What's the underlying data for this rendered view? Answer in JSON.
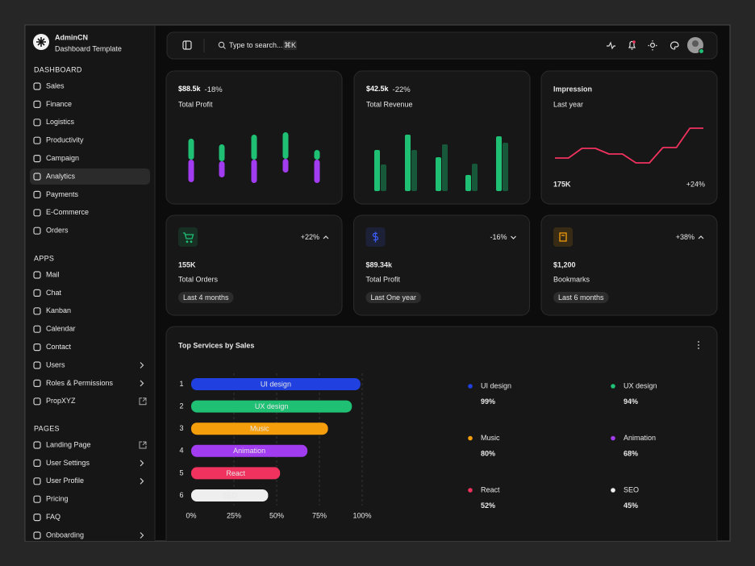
{
  "sidebar": {
    "brand": {
      "name": "AdminCN",
      "subtitle": "Dashboard Template"
    },
    "sections": [
      {
        "title": "DASHBOARD",
        "items": [
          {
            "label": "Sales"
          },
          {
            "label": "Finance"
          },
          {
            "label": "Logistics"
          },
          {
            "label": "Productivity"
          },
          {
            "label": "Campaign"
          },
          {
            "label": "Analytics",
            "active": true
          },
          {
            "label": "Payments"
          },
          {
            "label": "E-Commerce"
          },
          {
            "label": "Orders"
          }
        ]
      },
      {
        "title": "APPS",
        "items": [
          {
            "label": "Mail"
          },
          {
            "label": "Chat"
          },
          {
            "label": "Kanban"
          },
          {
            "label": "Calendar"
          },
          {
            "label": "Contact"
          },
          {
            "label": "Users",
            "trailing": "chevron"
          },
          {
            "label": "Roles & Permissions",
            "trailing": "chevron"
          },
          {
            "label": "PropXYZ",
            "trailing": "external"
          }
        ]
      },
      {
        "title": "PAGES",
        "items": [
          {
            "label": "Landing Page",
            "trailing": "external"
          },
          {
            "label": "User Settings",
            "trailing": "chevron"
          },
          {
            "label": "User Profile",
            "trailing": "chevron"
          },
          {
            "label": "Pricing"
          },
          {
            "label": "FAQ"
          },
          {
            "label": "Onboarding",
            "trailing": "chevron"
          }
        ]
      }
    ]
  },
  "topbar": {
    "search_placeholder": "Type to search...",
    "shortcut": "⌘K"
  },
  "profit_card": {
    "value": "$88.5k",
    "change": "-18%",
    "label": "Total Profit",
    "chart": {
      "type": "bar",
      "ylim": [
        0,
        70
      ],
      "offsets": [
        4,
        10,
        3,
        16,
        3
      ],
      "series": [
        {
          "color": "#a23cf0",
          "values": [
            28,
            20,
            29,
            17,
            29
          ]
        },
        {
          "color": "#1fbf74",
          "values": [
            26,
            21,
            31,
            33,
            12
          ]
        }
      ]
    }
  },
  "revenue_card": {
    "value": "$42.5k",
    "change": "-22%",
    "label": "Total Revenue",
    "chart": {
      "type": "bar",
      "ylim": [
        0,
        80
      ],
      "series": [
        {
          "color": "#1fbf74",
          "values": [
            51,
            70,
            42,
            20,
            68
          ]
        },
        {
          "color": "#17583a",
          "values": [
            33,
            51,
            58,
            34,
            60
          ]
        }
      ]
    }
  },
  "impression_card": {
    "title": "Impression",
    "subtitle": "Last year",
    "value": "175K",
    "change": "+24%",
    "chart": {
      "type": "line",
      "color": "#f0325f",
      "ylim": [
        0,
        80
      ],
      "values": [
        34,
        34,
        46,
        46,
        39,
        39,
        28,
        28,
        47,
        47,
        71,
        71
      ]
    }
  },
  "stat_cards": [
    {
      "change": "+22%",
      "trend": "up",
      "value": "155K",
      "label": "Total Orders",
      "period": "Last 4 months",
      "color": "#1fbf74"
    },
    {
      "change": "-16%",
      "trend": "down",
      "value": "$89.34k",
      "label": "Total Profit",
      "period": "Last One year",
      "color": "#3b5bf0"
    },
    {
      "change": "+38%",
      "trend": "up",
      "value": "$1,200",
      "label": "Bookmarks",
      "period": "Last 6 months",
      "color": "#f59e0b"
    }
  ],
  "chart_data": {
    "type": "bar",
    "orientation": "horizontal",
    "title": "Top Services by Sales",
    "categories": [
      "UI design",
      "UX design",
      "Music",
      "Animation",
      "React",
      "SEO"
    ],
    "ranks": [
      1,
      2,
      3,
      4,
      5,
      6
    ],
    "values": [
      99,
      94,
      80,
      68,
      52,
      45
    ],
    "value_labels": [
      "99%",
      "94%",
      "80%",
      "68%",
      "52%",
      "45%"
    ],
    "colors": [
      "#2040e0",
      "#1fbf74",
      "#f59e0b",
      "#a23cf0",
      "#f0325f",
      "#eeeeee"
    ],
    "xlim": [
      0,
      100
    ],
    "xticks": [
      {
        "value": 0,
        "label": "0%"
      },
      {
        "value": 25,
        "label": "25%"
      },
      {
        "value": 50,
        "label": "50%"
      },
      {
        "value": 75,
        "label": "75%"
      },
      {
        "value": 100,
        "label": "100%"
      }
    ],
    "grid": true
  }
}
